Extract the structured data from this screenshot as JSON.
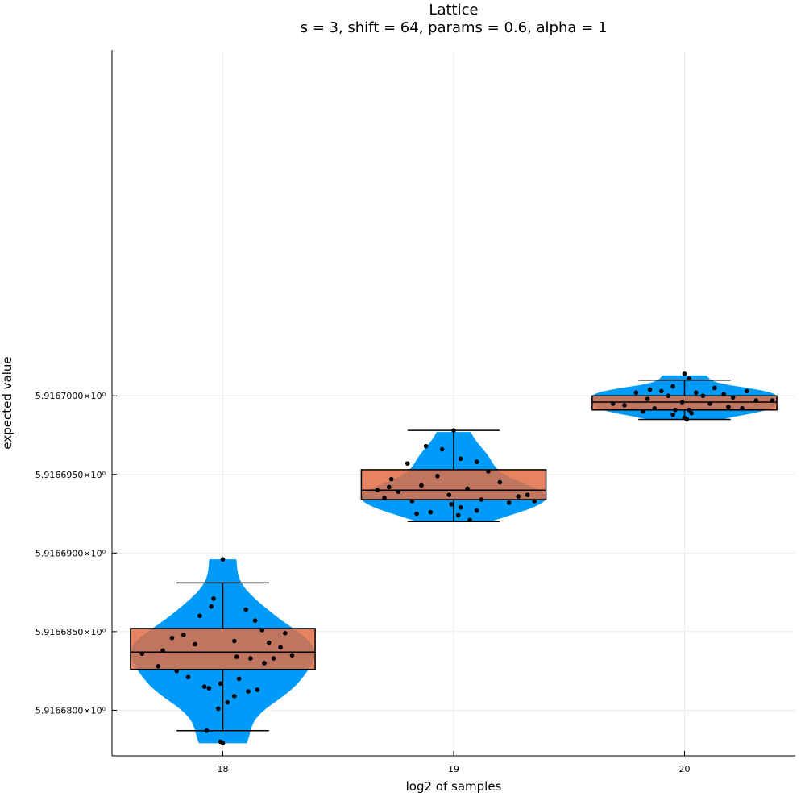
{
  "chart_data": {
    "type": "violin-box-scatter",
    "title": "Lattice",
    "subtitle": "s = 3, shift = 64, params = 0.6, alpha = 1",
    "xlabel": "log2 of samples",
    "ylabel": "expected value",
    "categories": [
      "18",
      "19",
      "20"
    ],
    "x_tick_labels": [
      "18",
      "19",
      "20"
    ],
    "y_tick_labels": [
      "5.9166800×10⁰",
      "5.9166850×10⁰",
      "5.9166900×10⁰",
      "5.9166950×10⁰",
      "5.9167000×10⁰"
    ],
    "y_ticks": [
      5.91668,
      5.916685,
      5.91669,
      5.916695,
      5.9167
    ],
    "xlim": [
      17.52,
      20.48
    ],
    "ylim": [
      5.9166771,
      5.916722
    ],
    "grid": true,
    "legend": "none",
    "colors": {
      "violin": "#009AF9",
      "box": "#E26F46",
      "box_overlap": "#A67A72",
      "points": "#000000",
      "grid": "#ececec"
    },
    "groups": [
      {
        "x": 18,
        "violin_range": [
          5.9166779,
          5.9166896
        ],
        "box": {
          "whisker_low": 5.9166787,
          "q1": 5.9166826,
          "median": 5.9166837,
          "q3": 5.9166852,
          "whisker_high": 5.9166881
        },
        "points": [
          [
            18.0,
            5.9166896
          ],
          [
            17.99,
            5.916678
          ],
          [
            18.0,
            5.9166779
          ],
          [
            17.83,
            5.9166848
          ],
          [
            17.78,
            5.9166846
          ],
          [
            17.74,
            5.9166838
          ],
          [
            17.9,
            5.916686
          ],
          [
            17.95,
            5.9166866
          ],
          [
            17.96,
            5.9166871
          ],
          [
            18.1,
            5.9166864
          ],
          [
            18.14,
            5.9166857
          ],
          [
            18.17,
            5.9166851
          ],
          [
            17.88,
            5.9166842
          ],
          [
            18.05,
            5.9166844
          ],
          [
            18.2,
            5.9166843
          ],
          [
            18.25,
            5.916684
          ],
          [
            18.3,
            5.9166835
          ],
          [
            17.65,
            5.9166836
          ],
          [
            17.72,
            5.9166828
          ],
          [
            18.06,
            5.9166834
          ],
          [
            18.12,
            5.9166833
          ],
          [
            17.85,
            5.9166821
          ],
          [
            17.8,
            5.9166825
          ],
          [
            17.92,
            5.9166815
          ],
          [
            17.94,
            5.9166814
          ],
          [
            18.07,
            5.916682
          ],
          [
            18.15,
            5.9166813
          ],
          [
            18.02,
            5.9166805
          ],
          [
            17.98,
            5.9166801
          ],
          [
            17.93,
            5.9166787
          ],
          [
            18.05,
            5.9166809
          ],
          [
            18.11,
            5.9166812
          ],
          [
            17.99,
            5.9166817
          ],
          [
            18.18,
            5.916683
          ],
          [
            18.22,
            5.9166833
          ],
          [
            18.27,
            5.9166849
          ]
        ]
      },
      {
        "x": 19,
        "violin_range": [
          5.916692,
          5.9166977
        ],
        "box": {
          "whisker_low": 5.916692,
          "q1": 5.9166934,
          "median": 5.916694,
          "q3": 5.9166953,
          "whisker_high": 5.9166978
        },
        "points": [
          [
            19.0,
            5.9166978
          ],
          [
            18.88,
            5.9166968
          ],
          [
            18.95,
            5.9166966
          ],
          [
            19.03,
            5.916696
          ],
          [
            19.1,
            5.9166958
          ],
          [
            18.8,
            5.9166957
          ],
          [
            19.15,
            5.9166952
          ],
          [
            18.93,
            5.9166949
          ],
          [
            18.73,
            5.9166947
          ],
          [
            19.2,
            5.9166945
          ],
          [
            18.86,
            5.9166943
          ],
          [
            19.06,
            5.9166941
          ],
          [
            18.67,
            5.916694
          ],
          [
            18.76,
            5.9166939
          ],
          [
            18.98,
            5.9166937
          ],
          [
            19.28,
            5.9166936
          ],
          [
            18.7,
            5.9166935
          ],
          [
            19.12,
            5.9166934
          ],
          [
            18.82,
            5.9166933
          ],
          [
            18.99,
            5.9166931
          ],
          [
            19.24,
            5.9166932
          ],
          [
            19.03,
            5.9166929
          ],
          [
            19.1,
            5.9166927
          ],
          [
            18.9,
            5.9166926
          ],
          [
            18.84,
            5.9166925
          ],
          [
            19.02,
            5.9166924
          ],
          [
            19.07,
            5.9166921
          ],
          [
            19.35,
            5.9166933
          ],
          [
            19.32,
            5.9166937
          ],
          [
            18.72,
            5.9166942
          ]
        ]
      },
      {
        "x": 20,
        "violin_range": [
          5.9166985,
          5.9167013
        ],
        "box": {
          "whisker_low": 5.9166985,
          "q1": 5.9166991,
          "median": 5.9166996,
          "q3": 5.9167,
          "whisker_high": 5.916701
        },
        "points": [
          [
            20.0,
            5.9167014
          ],
          [
            20.02,
            5.9167011
          ],
          [
            19.95,
            5.9167006
          ],
          [
            20.13,
            5.9167005
          ],
          [
            19.85,
            5.9167004
          ],
          [
            20.27,
            5.9167003
          ],
          [
            19.9,
            5.9167003
          ],
          [
            20.05,
            5.9167002
          ],
          [
            19.79,
            5.9167002
          ],
          [
            20.17,
            5.9167001
          ],
          [
            19.93,
            5.9167
          ],
          [
            20.08,
            5.9167
          ],
          [
            20.21,
            5.9166999
          ],
          [
            19.84,
            5.9166998
          ],
          [
            20.31,
            5.9166997
          ],
          [
            19.99,
            5.9166996
          ],
          [
            20.11,
            5.9166995
          ],
          [
            19.74,
            5.9166994
          ],
          [
            20.19,
            5.9166993
          ],
          [
            19.87,
            5.9166992
          ],
          [
            20.02,
            5.9166991
          ],
          [
            19.96,
            5.9166991
          ],
          [
            20.25,
            5.9166992
          ],
          [
            19.82,
            5.916699
          ],
          [
            20.03,
            5.9166989
          ],
          [
            19.95,
            5.9166988
          ],
          [
            20.01,
            5.9166985
          ],
          [
            20.0,
            5.9166986
          ],
          [
            20.38,
            5.9166997
          ],
          [
            19.69,
            5.9166995
          ]
        ]
      }
    ]
  }
}
